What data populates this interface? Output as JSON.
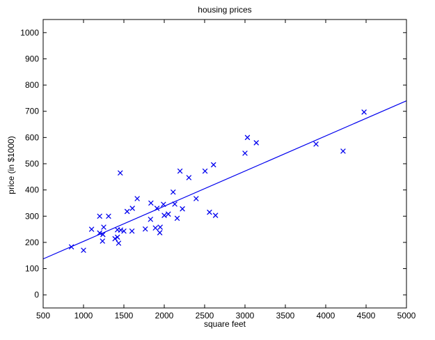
{
  "chart_data": {
    "type": "scatter",
    "title": "housing prices",
    "xlabel": "square feet",
    "ylabel": "price (in $1000)",
    "xlim": [
      500,
      5000
    ],
    "ylim": [
      -50,
      1050
    ],
    "x_ticks": [
      500,
      1000,
      1500,
      2000,
      2500,
      3000,
      3500,
      4000,
      4500,
      5000
    ],
    "y_ticks": [
      0,
      100,
      200,
      300,
      400,
      500,
      600,
      700,
      800,
      900,
      1000
    ],
    "grid": false,
    "legend": null,
    "marker": "x",
    "marker_color": "#0000ee",
    "line_color": "#0000ee",
    "axis_color": "#000000",
    "background_color": "#ffffff",
    "points": [
      [
        850,
        183
      ],
      [
        1000,
        170
      ],
      [
        1100,
        250
      ],
      [
        1200,
        300
      ],
      [
        1310,
        300
      ],
      [
        1250,
        258
      ],
      [
        1200,
        236
      ],
      [
        1240,
        230
      ],
      [
        1235,
        205
      ],
      [
        1390,
        214
      ],
      [
        1420,
        220
      ],
      [
        1435,
        197
      ],
      [
        1420,
        248
      ],
      [
        1460,
        247
      ],
      [
        1500,
        243
      ],
      [
        1455,
        465
      ],
      [
        1540,
        318
      ],
      [
        1605,
        330
      ],
      [
        1600,
        243
      ],
      [
        1665,
        367
      ],
      [
        1765,
        251
      ],
      [
        1830,
        288
      ],
      [
        1835,
        350
      ],
      [
        1890,
        255
      ],
      [
        1950,
        258
      ],
      [
        1945,
        237
      ],
      [
        1910,
        330
      ],
      [
        1990,
        345
      ],
      [
        2000,
        303
      ],
      [
        2050,
        308
      ],
      [
        2110,
        392
      ],
      [
        2130,
        346
      ],
      [
        2225,
        328
      ],
      [
        2160,
        292
      ],
      [
        2195,
        472
      ],
      [
        2305,
        447
      ],
      [
        2395,
        367
      ],
      [
        2505,
        472
      ],
      [
        2560,
        315
      ],
      [
        2610,
        496
      ],
      [
        2635,
        303
      ],
      [
        3000,
        540
      ],
      [
        3030,
        600
      ],
      [
        3140,
        580
      ],
      [
        3880,
        575
      ],
      [
        4215,
        548
      ],
      [
        4475,
        697
      ]
    ],
    "fit_line": {
      "x1": 500,
      "y1": 137,
      "x2": 5000,
      "y2": 740
    }
  }
}
